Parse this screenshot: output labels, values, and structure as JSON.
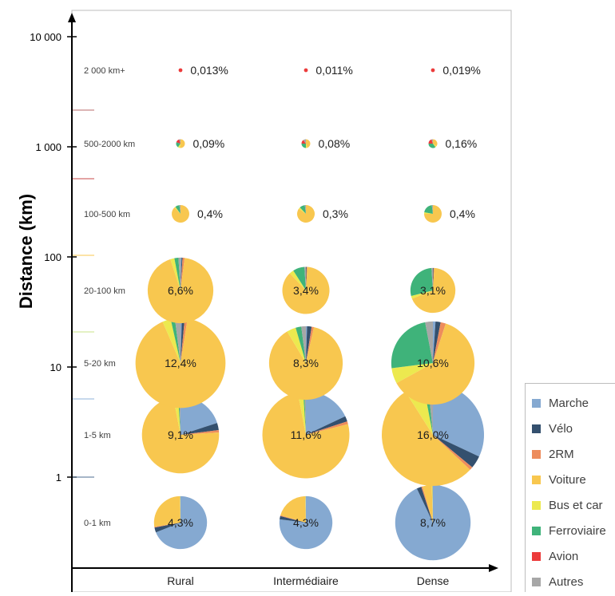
{
  "chart_data": {
    "type": "pie",
    "ylabel": "Distance (km)",
    "y_scale": "log",
    "y_ticks": [
      "10 000",
      "1 000",
      "100",
      "10",
      "1"
    ],
    "columns": [
      "Rural",
      "Intermédiaire",
      "Dense"
    ],
    "rows": [
      "2 000 km+",
      "500-2000 km",
      "100-500 km",
      "20-100 km",
      "5-20 km",
      "1-5 km",
      "0-1 km"
    ],
    "categories": [
      "Marche",
      "Vélo",
      "2RM",
      "Voiture",
      "Bus et car",
      "Ferroviaire",
      "Avion",
      "Autres"
    ],
    "colors": [
      "#85a9d1",
      "#34506e",
      "#ed8c5c",
      "#f8c74f",
      "#ece94f",
      "#3fb37a",
      "#ec3b3b",
      "#a7a7a7"
    ],
    "cells": [
      {
        "row": "2 000 km+",
        "column": "Rural",
        "label": "0,013%",
        "value": 0.013,
        "shares": [
          0,
          0,
          0,
          0,
          0,
          0,
          100,
          0
        ]
      },
      {
        "row": "2 000 km+",
        "column": "Intermédiaire",
        "label": "0,011%",
        "value": 0.011,
        "shares": [
          0,
          0,
          0,
          0,
          0,
          0,
          100,
          0
        ]
      },
      {
        "row": "2 000 km+",
        "column": "Dense",
        "label": "0,019%",
        "value": 0.019,
        "shares": [
          0,
          0,
          0,
          0,
          0,
          0,
          100,
          0
        ]
      },
      {
        "row": "500-2000 km",
        "column": "Rural",
        "label": "0,09%",
        "value": 0.09,
        "shares": [
          0,
          0,
          0,
          52,
          8,
          20,
          15,
          5
        ]
      },
      {
        "row": "500-2000 km",
        "column": "Intermédiaire",
        "label": "0,08%",
        "value": 0.08,
        "shares": [
          0,
          0,
          0,
          45,
          5,
          25,
          15,
          10
        ]
      },
      {
        "row": "500-2000 km",
        "column": "Dense",
        "label": "0,16%",
        "value": 0.16,
        "shares": [
          0,
          0,
          0,
          35,
          5,
          35,
          20,
          5
        ]
      },
      {
        "row": "100-500 km",
        "column": "Rural",
        "label": "0,4%",
        "value": 0.4,
        "shares": [
          0,
          0,
          0,
          88,
          2,
          8,
          0,
          2
        ]
      },
      {
        "row": "100-500 km",
        "column": "Intermédiaire",
        "label": "0,3%",
        "value": 0.3,
        "shares": [
          0,
          0,
          0,
          85,
          3,
          10,
          0,
          2
        ]
      },
      {
        "row": "100-500 km",
        "column": "Dense",
        "label": "0,4%",
        "value": 0.4,
        "shares": [
          0,
          0,
          0,
          75,
          3,
          20,
          0,
          2
        ]
      },
      {
        "row": "20-100 km",
        "column": "Rural",
        "label": "6,6%",
        "value": 6.6,
        "shares": [
          0.5,
          0.5,
          1,
          93,
          2,
          2,
          0,
          1
        ]
      },
      {
        "row": "20-100 km",
        "column": "Intermédiaire",
        "label": "3,4%",
        "value": 3.4,
        "shares": [
          0,
          0.5,
          0.5,
          87,
          3,
          8,
          0,
          1
        ]
      },
      {
        "row": "20-100 km",
        "column": "Dense",
        "label": "3,1%",
        "value": 3.1,
        "shares": [
          0,
          0.5,
          0.5,
          68,
          2,
          28,
          0,
          1
        ]
      },
      {
        "row": "5-20 km",
        "column": "Rural",
        "label": "12,4%",
        "value": 12.4,
        "shares": [
          0.5,
          1,
          1,
          91,
          3,
          1.5,
          0,
          2
        ]
      },
      {
        "row": "5-20 km",
        "column": "Intermédiaire",
        "label": "8,3%",
        "value": 8.3,
        "shares": [
          0.5,
          2,
          1,
          88,
          4,
          2.5,
          0,
          2
        ]
      },
      {
        "row": "5-20 km",
        "column": "Dense",
        "label": "10,6%",
        "value": 10.6,
        "shares": [
          1,
          2,
          2,
          62,
          6,
          24,
          0,
          3
        ]
      },
      {
        "row": "1-5 km",
        "column": "Rural",
        "label": "9,1%",
        "value": 9.1,
        "shares": [
          20,
          3,
          1,
          73,
          2,
          0.5,
          0,
          0.5
        ]
      },
      {
        "row": "1-5 km",
        "column": "Intermédiaire",
        "label": "11,6%",
        "value": 11.6,
        "shares": [
          18,
          2,
          1,
          76,
          2,
          0.5,
          0,
          0.5
        ]
      },
      {
        "row": "1-5 km",
        "column": "Dense",
        "label": "16,0%",
        "value": 16.0,
        "shares": [
          32,
          4,
          1,
          54,
          6,
          1.5,
          0,
          1.5
        ]
      },
      {
        "row": "0-1 km",
        "column": "Rural",
        "label": "4,3%",
        "value": 4.3,
        "shares": [
          69,
          3,
          0.5,
          27,
          0.3,
          0,
          0,
          0.2
        ]
      },
      {
        "row": "0-1 km",
        "column": "Intermédiaire",
        "label": "4,3%",
        "value": 4.3,
        "shares": [
          77,
          2,
          0.5,
          20,
          0.3,
          0,
          0,
          0.2
        ]
      },
      {
        "row": "0-1 km",
        "column": "Dense",
        "label": "8,7%",
        "value": 8.7,
        "shares": [
          93,
          2,
          0.5,
          4,
          0.3,
          0,
          0,
          0.2
        ]
      }
    ],
    "grid": false,
    "legend_position": "bottom-right"
  }
}
